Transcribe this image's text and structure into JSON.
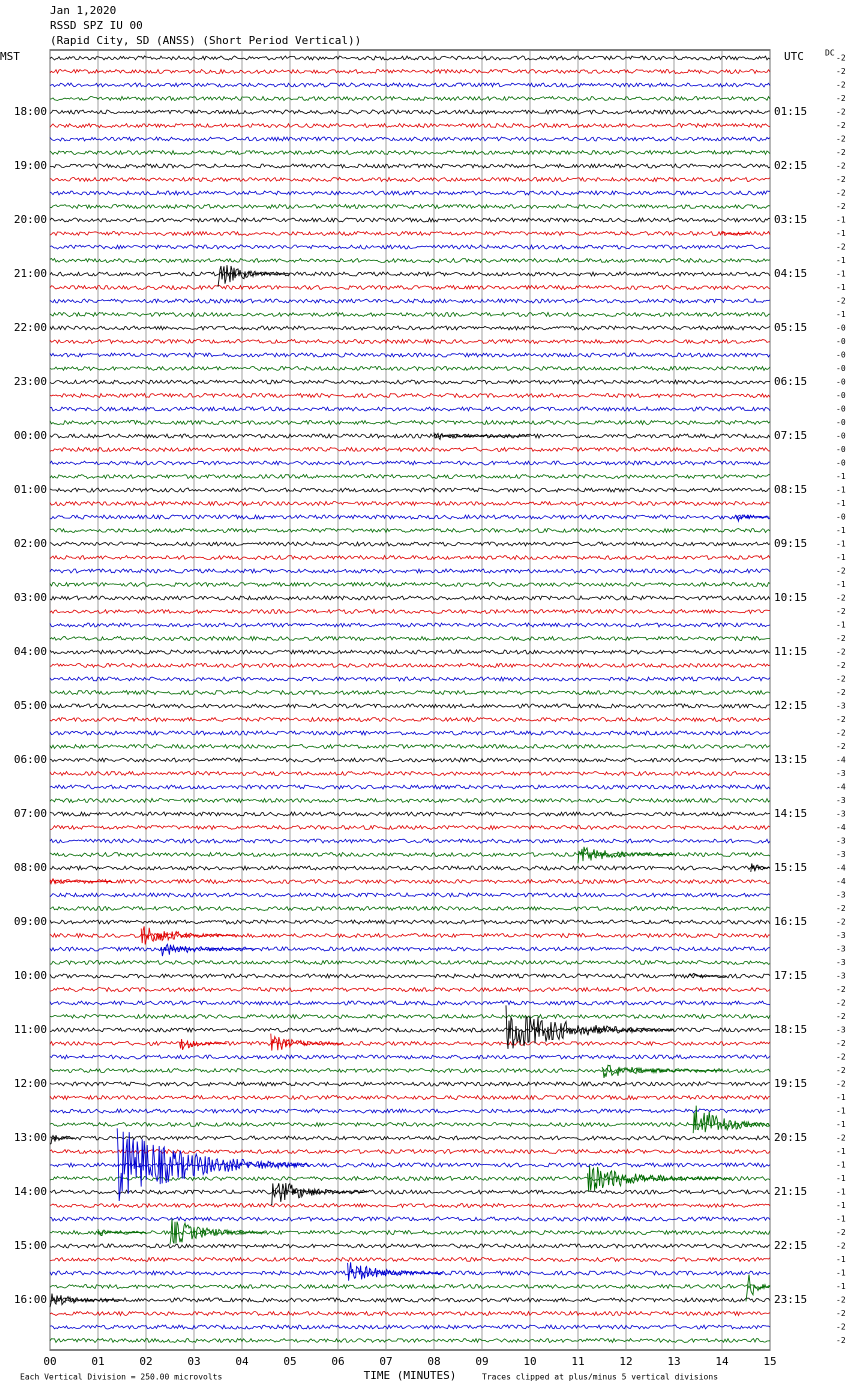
{
  "chart_data": {
    "type": "helicorder",
    "title": "Jan 1,2020",
    "subtitle": "RSSD SPZ IU 00",
    "station": "(Rapid City, SD (ANSS) (Short Period Vertical))",
    "left_zone": "MST",
    "right_zone": "UTC",
    "dc_label": "DC",
    "xlabel": "TIME (MINUTES)",
    "scale_note": "Each Vertical Division =  250.00 microvolts",
    "clip_note": "Traces clipped at plus/minus 5 vertical divisions",
    "xlim": [
      0,
      15
    ],
    "xticks": [
      {
        "value": 0,
        "label": "00"
      },
      {
        "value": 1,
        "label": "01"
      },
      {
        "value": 2,
        "label": "02"
      },
      {
        "value": 3,
        "label": "03"
      },
      {
        "value": 4,
        "label": "04"
      },
      {
        "value": 5,
        "label": "05"
      },
      {
        "value": 6,
        "label": "06"
      },
      {
        "value": 7,
        "label": "07"
      },
      {
        "value": 8,
        "label": "08"
      },
      {
        "value": 9,
        "label": "09"
      },
      {
        "value": 10,
        "label": "10"
      },
      {
        "value": 11,
        "label": "11"
      },
      {
        "value": 12,
        "label": "12"
      },
      {
        "value": 13,
        "label": "13"
      },
      {
        "value": 14,
        "label": "14"
      },
      {
        "value": 15,
        "label": "15"
      }
    ],
    "trace_colors": [
      "#000000",
      "#e00000",
      "#0000d0",
      "#006a00"
    ],
    "left_labels": [
      "18:00",
      "19:00",
      "20:00",
      "21:00",
      "22:00",
      "23:00",
      "00:00",
      "01:00",
      "02:00",
      "03:00",
      "04:00",
      "05:00",
      "06:00",
      "07:00",
      "08:00",
      "09:00",
      "10:00",
      "11:00",
      "12:00",
      "13:00",
      "14:00",
      "15:00",
      "16:00"
    ],
    "right_labels": [
      "01:15",
      "02:15",
      "03:15",
      "04:15",
      "05:15",
      "06:15",
      "07:15",
      "08:15",
      "09:15",
      "10:15",
      "11:15",
      "12:15",
      "13:15",
      "14:15",
      "15:15",
      "16:15",
      "17:15",
      "18:15",
      "19:15",
      "20:15",
      "21:15",
      "22:15",
      "23:15"
    ],
    "dc_offsets": [
      "-2",
      "-2",
      "-2",
      "-2",
      "-2",
      "-2",
      "-2",
      "-2",
      "-2",
      "-2",
      "-2",
      "-2",
      "-1",
      "-1",
      "-2",
      "-1",
      "-1",
      "-1",
      "-2",
      "-1",
      "-0",
      "-0",
      "-0",
      "-0",
      "-0",
      "-0",
      "-0",
      "-0",
      "-0",
      "-0",
      "-0",
      "-1",
      "-1",
      "-1",
      "-0",
      "-1",
      "-1",
      "-1",
      "-2",
      "-1",
      "-2",
      "-2",
      "-1",
      "-2",
      "-2",
      "-2",
      "-2",
      "-2",
      "-3",
      "-2",
      "-2",
      "-2",
      "-4",
      "-3",
      "-4",
      "-3",
      "-3",
      "-4",
      "-3",
      "-3",
      "-4",
      "-4",
      "-3",
      "-2",
      "-2",
      "-3",
      "-3",
      "-3",
      "-3",
      "-2",
      "-2",
      "-2",
      "-3",
      "-2",
      "-2",
      "-2",
      "-2",
      "-1",
      "-1",
      "-1",
      "-2",
      "-1",
      "-1",
      "-1",
      "-1",
      "-1",
      "-1",
      "-2",
      "-2",
      "-1",
      "-1",
      "-1",
      "-2",
      "-2",
      "-2",
      "-2"
    ],
    "events": [
      {
        "trace": 13,
        "start": 14.0,
        "duration": 0.6,
        "amplitude": 3
      },
      {
        "trace": 16,
        "start": 3.5,
        "duration": 1.5,
        "amplitude": 14
      },
      {
        "trace": 28,
        "start": 8.0,
        "duration": 2,
        "amplitude": 4
      },
      {
        "trace": 34,
        "start": 14.3,
        "duration": 0.7,
        "amplitude": 5
      },
      {
        "trace": 59,
        "start": 11.0,
        "duration": 2,
        "amplitude": 10
      },
      {
        "trace": 60,
        "start": 14.6,
        "duration": 0.4,
        "amplitude": 10
      },
      {
        "trace": 61,
        "start": 0,
        "duration": 1.3,
        "amplitude": 3
      },
      {
        "trace": 65,
        "start": 1.9,
        "duration": 2,
        "amplitude": 12
      },
      {
        "trace": 66,
        "start": 2.3,
        "duration": 2,
        "amplitude": 8
      },
      {
        "trace": 68,
        "start": 13.3,
        "duration": 0.8,
        "amplitude": 4
      },
      {
        "trace": 72,
        "start": 9.5,
        "duration": 3.5,
        "amplitude": 25
      },
      {
        "trace": 73,
        "start": 2.7,
        "duration": 1,
        "amplitude": 8
      },
      {
        "trace": 73,
        "start": 4.6,
        "duration": 1.5,
        "amplitude": 10
      },
      {
        "trace": 75,
        "start": 11.5,
        "duration": 2.5,
        "amplitude": 8
      },
      {
        "trace": 79,
        "start": 13.4,
        "duration": 1.6,
        "amplitude": 25
      },
      {
        "trace": 80,
        "start": 0,
        "duration": 0.5,
        "amplitude": 8
      },
      {
        "trace": 82,
        "start": 1.4,
        "duration": 4,
        "amplitude": 40
      },
      {
        "trace": 83,
        "start": 11.2,
        "duration": 3,
        "amplitude": 15
      },
      {
        "trace": 84,
        "start": 4.6,
        "duration": 2,
        "amplitude": 15
      },
      {
        "trace": 87,
        "start": 1.0,
        "duration": 1,
        "amplitude": 4
      },
      {
        "trace": 87,
        "start": 2.5,
        "duration": 2,
        "amplitude": 15
      },
      {
        "trace": 90,
        "start": 6.2,
        "duration": 2,
        "amplitude": 12
      },
      {
        "trace": 91,
        "start": 14.5,
        "duration": 0.5,
        "amplitude": 20
      },
      {
        "trace": 92,
        "start": 0,
        "duration": 1.5,
        "amplitude": 8
      }
    ]
  }
}
